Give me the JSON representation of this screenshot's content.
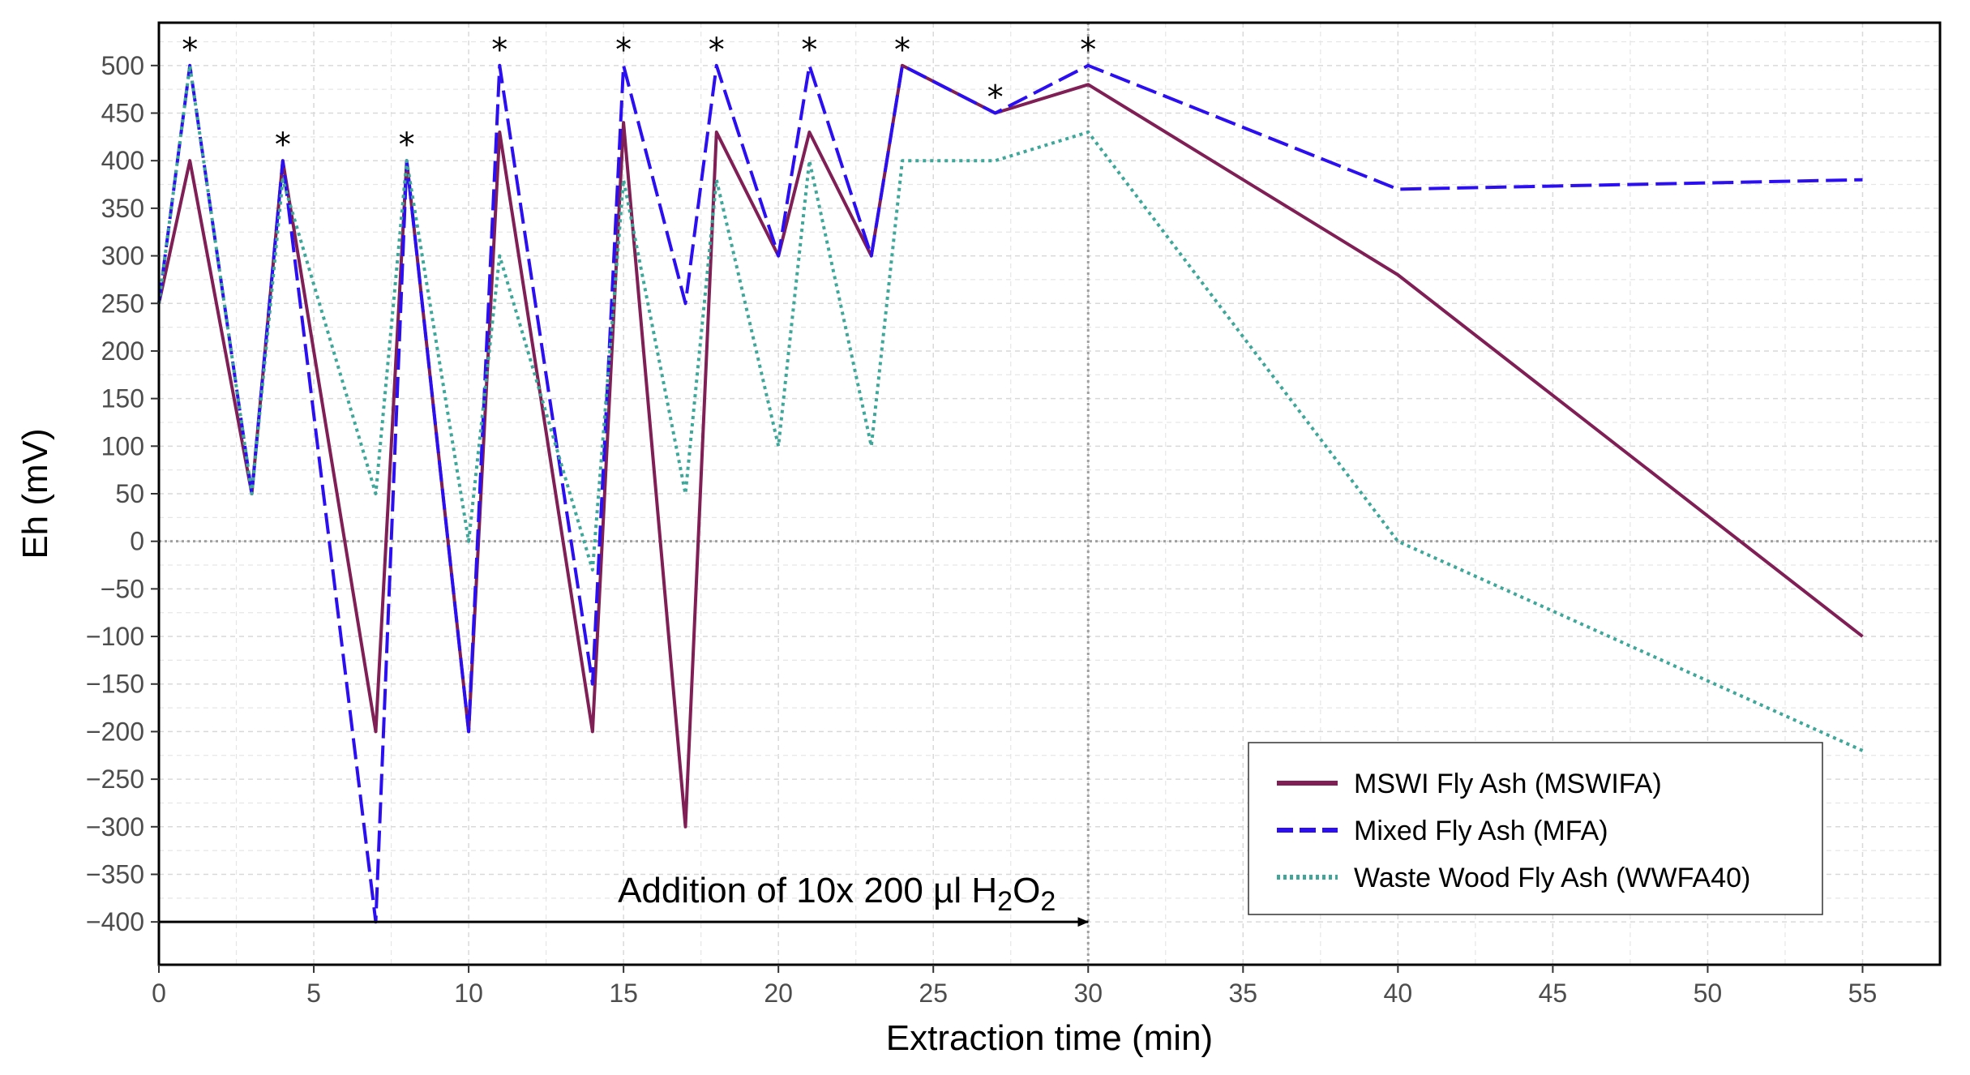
{
  "chart_data": {
    "type": "line",
    "xlabel": "Extraction time (min)",
    "ylabel": "Eh (mV)",
    "xlim": [
      0,
      57.5
    ],
    "ylim": [
      -445,
      545
    ],
    "x_ticks": [
      0,
      5,
      10,
      15,
      20,
      25,
      30,
      35,
      40,
      45,
      50,
      55
    ],
    "y_ticks": [
      -400,
      -350,
      -300,
      -250,
      -200,
      -150,
      -100,
      -50,
      0,
      50,
      100,
      150,
      200,
      250,
      300,
      350,
      400,
      450,
      500
    ],
    "grid": true,
    "zero_line": 0,
    "vertical_marker_x": 30,
    "legend_position": "bottom-right",
    "series": [
      {
        "name": "MSWI Fly Ash (MSWIFA)",
        "color": "#7f1f55",
        "dash": "solid",
        "x": [
          0,
          1,
          3,
          4,
          7,
          8,
          10,
          11,
          14,
          15,
          17,
          18,
          20,
          21,
          23,
          24,
          27,
          30,
          40,
          55
        ],
        "y": [
          250,
          400,
          50,
          400,
          -200,
          400,
          -200,
          430,
          -200,
          440,
          -300,
          430,
          300,
          430,
          300,
          500,
          450,
          480,
          280,
          -100
        ]
      },
      {
        "name": "Mixed Fly Ash (MFA)",
        "color": "#2b0ff0",
        "dash": "longdash",
        "x": [
          0,
          1,
          3,
          4,
          7,
          8,
          10,
          11,
          14,
          15,
          17,
          18,
          20,
          21,
          23,
          24,
          27,
          30,
          40,
          55
        ],
        "y": [
          250,
          500,
          50,
          400,
          -400,
          400,
          -200,
          500,
          -150,
          500,
          250,
          500,
          300,
          500,
          300,
          500,
          450,
          500,
          370,
          380
        ]
      },
      {
        "name": "Waste Wood Fly Ash (WWFA40)",
        "color": "#3fa79a",
        "dash": "dotted",
        "x": [
          0,
          1,
          3,
          4,
          7,
          8,
          10,
          11,
          14,
          15,
          17,
          18,
          20,
          21,
          23,
          24,
          27,
          30,
          40,
          55
        ],
        "y": [
          250,
          500,
          50,
          380,
          50,
          400,
          0,
          300,
          -30,
          380,
          50,
          380,
          100,
          400,
          100,
          400,
          400,
          430,
          0,
          -220
        ]
      }
    ],
    "star_marker": "*",
    "star_points": [
      {
        "x": 1,
        "y": 500
      },
      {
        "x": 4,
        "y": 400
      },
      {
        "x": 8,
        "y": 400
      },
      {
        "x": 11,
        "y": 500
      },
      {
        "x": 15,
        "y": 500
      },
      {
        "x": 18,
        "y": 500
      },
      {
        "x": 21,
        "y": 500
      },
      {
        "x": 24,
        "y": 500
      },
      {
        "x": 27,
        "y": 450
      },
      {
        "x": 30,
        "y": 500
      }
    ],
    "annotation": {
      "text_main": "Addition of 10x 200 µl H",
      "sub1": "2",
      "text_mid": "O",
      "sub2": "2",
      "arrow_from_x": 0,
      "arrow_to_x": 30,
      "arrow_y": -400
    }
  }
}
